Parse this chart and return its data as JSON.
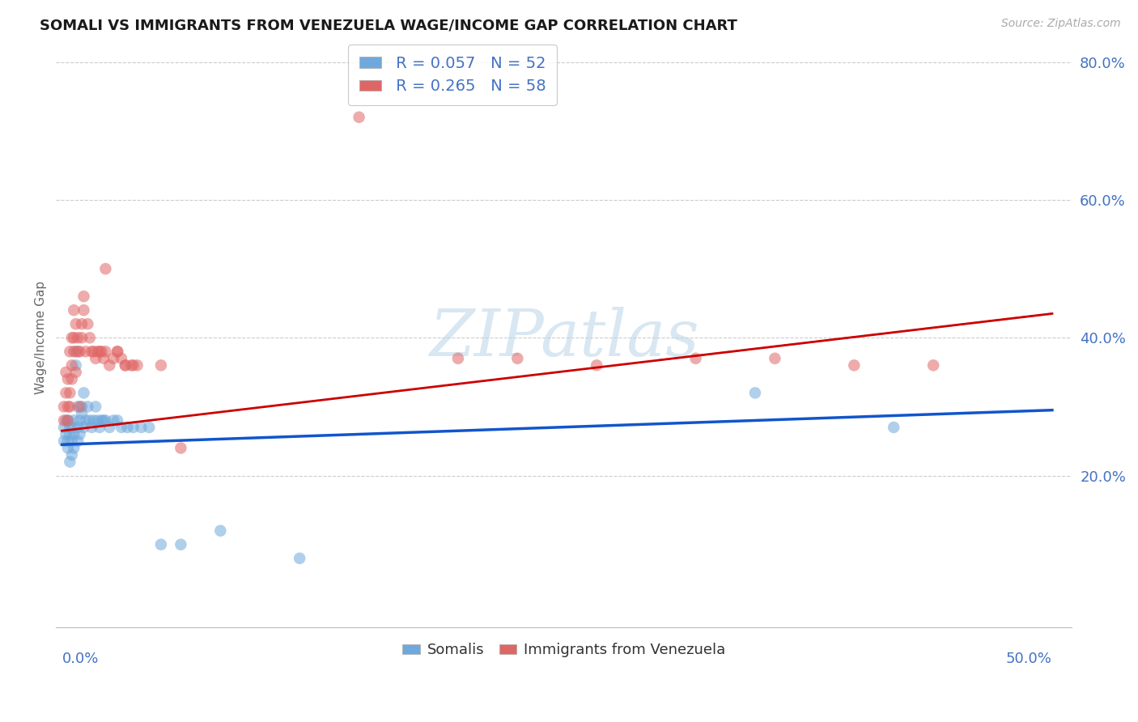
{
  "title": "SOMALI VS IMMIGRANTS FROM VENEZUELA WAGE/INCOME GAP CORRELATION CHART",
  "source": "Source: ZipAtlas.com",
  "ylabel": "Wage/Income Gap",
  "axis_label_color": "#4472c4",
  "somali_color": "#6fa8dc",
  "venezuela_color": "#e06666",
  "somali_line_color": "#1155cc",
  "venezuela_line_color": "#cc0000",
  "watermark_color": "#b8d4e8",
  "somali_R": 0.057,
  "somali_N": 52,
  "venezuela_R": 0.265,
  "venezuela_N": 58,
  "xlim_min": 0.0,
  "xlim_max": 0.5,
  "ylim_min": -0.02,
  "ylim_max": 0.82,
  "ytick_positions": [
    0.2,
    0.4,
    0.6,
    0.8
  ],
  "ytick_labels": [
    "20.0%",
    "40.0%",
    "60.0%",
    "80.0%"
  ],
  "somali_line_x0": 0.0,
  "somali_line_x1": 0.5,
  "somali_line_y0": 0.245,
  "somali_line_y1": 0.295,
  "venezuela_line_x0": 0.0,
  "venezuela_line_x1": 0.5,
  "venezuela_line_y0": 0.265,
  "venezuela_line_y1": 0.435,
  "somali_x": [
    0.001,
    0.001,
    0.002,
    0.002,
    0.003,
    0.003,
    0.003,
    0.004,
    0.004,
    0.004,
    0.005,
    0.005,
    0.005,
    0.006,
    0.006,
    0.006,
    0.007,
    0.007,
    0.008,
    0.008,
    0.008,
    0.009,
    0.009,
    0.01,
    0.01,
    0.011,
    0.011,
    0.012,
    0.013,
    0.014,
    0.015,
    0.016,
    0.017,
    0.018,
    0.019,
    0.02,
    0.021,
    0.022,
    0.024,
    0.026,
    0.028,
    0.03,
    0.033,
    0.036,
    0.04,
    0.044,
    0.05,
    0.06,
    0.08,
    0.12,
    0.35,
    0.42
  ],
  "somali_y": [
    0.27,
    0.25,
    0.26,
    0.28,
    0.28,
    0.25,
    0.24,
    0.26,
    0.22,
    0.27,
    0.25,
    0.27,
    0.23,
    0.28,
    0.26,
    0.24,
    0.38,
    0.36,
    0.27,
    0.3,
    0.25,
    0.28,
    0.26,
    0.3,
    0.29,
    0.32,
    0.27,
    0.28,
    0.3,
    0.28,
    0.27,
    0.28,
    0.3,
    0.28,
    0.27,
    0.28,
    0.28,
    0.28,
    0.27,
    0.28,
    0.28,
    0.27,
    0.27,
    0.27,
    0.27,
    0.27,
    0.1,
    0.1,
    0.12,
    0.08,
    0.32,
    0.27
  ],
  "venezuela_x": [
    0.001,
    0.001,
    0.002,
    0.002,
    0.003,
    0.003,
    0.003,
    0.004,
    0.004,
    0.004,
    0.005,
    0.005,
    0.005,
    0.006,
    0.006,
    0.006,
    0.007,
    0.007,
    0.008,
    0.008,
    0.009,
    0.009,
    0.01,
    0.01,
    0.011,
    0.011,
    0.012,
    0.013,
    0.014,
    0.015,
    0.016,
    0.017,
    0.018,
    0.019,
    0.02,
    0.021,
    0.022,
    0.024,
    0.026,
    0.028,
    0.03,
    0.032,
    0.035,
    0.038,
    0.022,
    0.028,
    0.032,
    0.036,
    0.05,
    0.06,
    0.15,
    0.2,
    0.23,
    0.27,
    0.32,
    0.36,
    0.4,
    0.44
  ],
  "venezuela_y": [
    0.28,
    0.3,
    0.32,
    0.35,
    0.3,
    0.34,
    0.28,
    0.38,
    0.32,
    0.3,
    0.36,
    0.34,
    0.4,
    0.38,
    0.44,
    0.4,
    0.42,
    0.35,
    0.38,
    0.4,
    0.38,
    0.3,
    0.4,
    0.42,
    0.44,
    0.46,
    0.38,
    0.42,
    0.4,
    0.38,
    0.38,
    0.37,
    0.38,
    0.38,
    0.38,
    0.37,
    0.38,
    0.36,
    0.37,
    0.38,
    0.37,
    0.36,
    0.36,
    0.36,
    0.5,
    0.38,
    0.36,
    0.36,
    0.36,
    0.24,
    0.72,
    0.37,
    0.37,
    0.36,
    0.37,
    0.37,
    0.36,
    0.36
  ]
}
